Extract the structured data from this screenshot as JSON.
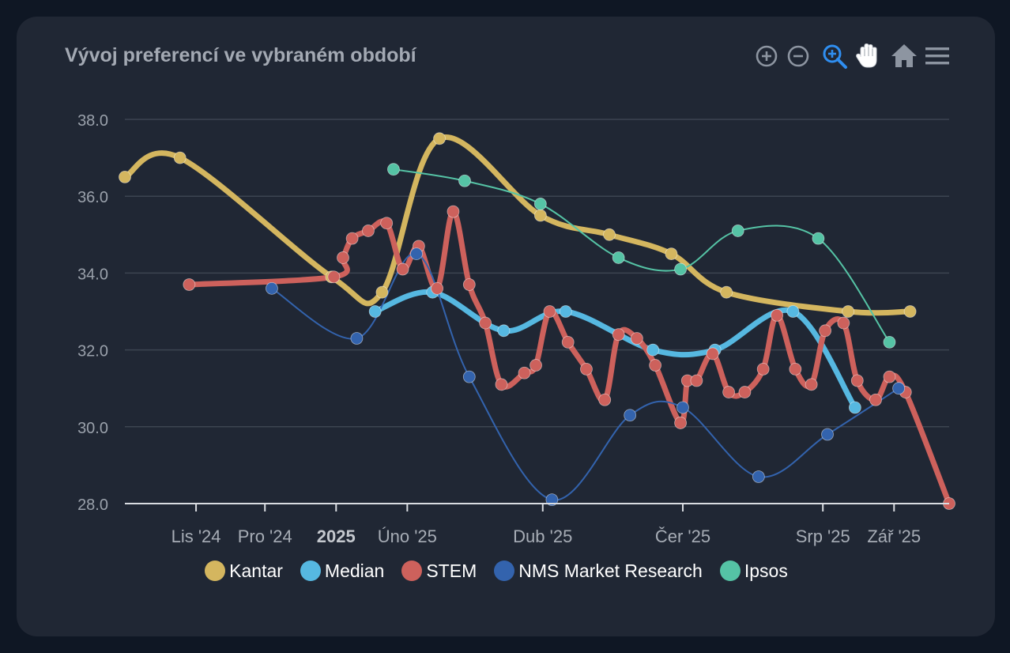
{
  "title": "Vývoj preferencí ve vybraném období",
  "toolbar": [
    {
      "name": "zoom-in-icon",
      "color": "#8d95a1"
    },
    {
      "name": "zoom-out-icon",
      "color": "#8d95a1"
    },
    {
      "name": "selection-zoom-icon",
      "color": "#2f8ef0"
    },
    {
      "name": "pan-hand-icon",
      "color": "#ffffff"
    },
    {
      "name": "reset-home-icon",
      "color": "#8d95a1"
    },
    {
      "name": "menu-icon",
      "color": "#8d95a1"
    }
  ],
  "chart_data": {
    "type": "line",
    "title": "Vývoj preferencí ve vybraném období",
    "x_type": "date",
    "x_range": [
      "2024-10-01",
      "2025-09-25"
    ],
    "ylim": [
      28,
      38
    ],
    "y_ticks": [
      "28.0",
      "30.0",
      "32.0",
      "34.0",
      "36.0",
      "38.0"
    ],
    "x_ticks": [
      {
        "date": "2024-11-01",
        "label": "Lis '24",
        "bold": false
      },
      {
        "date": "2024-12-01",
        "label": "Pro '24",
        "bold": false
      },
      {
        "date": "2025-01-01",
        "label": "2025",
        "bold": true
      },
      {
        "date": "2025-02-01",
        "label": "Úno '25",
        "bold": false
      },
      {
        "date": "2025-04-01",
        "label": "Dub '25",
        "bold": false
      },
      {
        "date": "2025-06-01",
        "label": "Čer '25",
        "bold": false
      },
      {
        "date": "2025-08-01",
        "label": "Srp '25",
        "bold": false
      },
      {
        "date": "2025-09-01",
        "label": "Zář '25",
        "bold": false
      }
    ],
    "grid": true,
    "legend_position": "bottom",
    "series": [
      {
        "name": "Kantar",
        "color": "#d4b65f",
        "weight": "thick",
        "points": [
          [
            "2024-10-01",
            36.5
          ],
          [
            "2024-10-25",
            37.0
          ],
          [
            "2024-12-30",
            33.9
          ],
          [
            "2025-01-21",
            33.5
          ],
          [
            "2025-02-15",
            37.5
          ],
          [
            "2025-03-31",
            35.5
          ],
          [
            "2025-04-30",
            35.0
          ],
          [
            "2025-05-27",
            34.5
          ],
          [
            "2025-06-20",
            33.5
          ],
          [
            "2025-08-12",
            33.0
          ],
          [
            "2025-09-08",
            33.0
          ]
        ]
      },
      {
        "name": "Median",
        "color": "#56b8e1",
        "weight": "thick",
        "points": [
          [
            "2025-01-18",
            33.0
          ],
          [
            "2025-02-12",
            33.5
          ],
          [
            "2025-03-15",
            32.5
          ],
          [
            "2025-04-11",
            33.0
          ],
          [
            "2025-05-19",
            32.0
          ],
          [
            "2025-06-15",
            32.0
          ],
          [
            "2025-07-19",
            33.0
          ],
          [
            "2025-08-15",
            30.5
          ]
        ]
      },
      {
        "name": "STEM",
        "color": "#cd615c",
        "weight": "thick",
        "points": [
          [
            "2024-10-29",
            33.7
          ],
          [
            "2024-12-31",
            33.9
          ],
          [
            "2025-01-04",
            34.4
          ],
          [
            "2025-01-08",
            34.9
          ],
          [
            "2025-01-15",
            35.1
          ],
          [
            "2025-01-23",
            35.3
          ],
          [
            "2025-01-30",
            34.1
          ],
          [
            "2025-02-06",
            34.7
          ],
          [
            "2025-02-14",
            33.6
          ],
          [
            "2025-02-21",
            35.6
          ],
          [
            "2025-02-28",
            33.7
          ],
          [
            "2025-03-07",
            32.7
          ],
          [
            "2025-03-14",
            31.1
          ],
          [
            "2025-03-24",
            31.4
          ],
          [
            "2025-03-29",
            31.6
          ],
          [
            "2025-04-04",
            33.0
          ],
          [
            "2025-04-12",
            32.2
          ],
          [
            "2025-04-20",
            31.5
          ],
          [
            "2025-04-28",
            30.7
          ],
          [
            "2025-05-04",
            32.4
          ],
          [
            "2025-05-12",
            32.3
          ],
          [
            "2025-05-20",
            31.6
          ],
          [
            "2025-05-31",
            30.1
          ],
          [
            "2025-06-03",
            31.2
          ],
          [
            "2025-06-07",
            31.2
          ],
          [
            "2025-06-14",
            31.9
          ],
          [
            "2025-06-21",
            30.9
          ],
          [
            "2025-06-28",
            30.9
          ],
          [
            "2025-07-06",
            31.5
          ],
          [
            "2025-07-12",
            32.9
          ],
          [
            "2025-07-20",
            31.5
          ],
          [
            "2025-07-27",
            31.1
          ],
          [
            "2025-08-02",
            32.5
          ],
          [
            "2025-08-10",
            32.7
          ],
          [
            "2025-08-16",
            31.2
          ],
          [
            "2025-08-24",
            30.7
          ],
          [
            "2025-08-30",
            31.3
          ],
          [
            "2025-09-06",
            30.9
          ],
          [
            "2025-09-25",
            28.0
          ]
        ]
      },
      {
        "name": "NMS Market Research",
        "color": "#3363ad",
        "weight": "thin",
        "points": [
          [
            "2024-12-04",
            33.6
          ],
          [
            "2025-01-10",
            32.3
          ],
          [
            "2025-02-05",
            34.5
          ],
          [
            "2025-02-28",
            31.3
          ],
          [
            "2025-04-05",
            28.1
          ],
          [
            "2025-05-09",
            30.3
          ],
          [
            "2025-06-01",
            30.5
          ],
          [
            "2025-07-04",
            28.7
          ],
          [
            "2025-08-03",
            29.8
          ],
          [
            "2025-09-03",
            31.0
          ]
        ]
      },
      {
        "name": "Ipsos",
        "color": "#55c3a5",
        "weight": "thin",
        "points": [
          [
            "2025-01-26",
            36.7
          ],
          [
            "2025-02-26",
            36.4
          ],
          [
            "2025-03-31",
            35.8
          ],
          [
            "2025-05-04",
            34.4
          ],
          [
            "2025-05-31",
            34.1
          ],
          [
            "2025-06-25",
            35.1
          ],
          [
            "2025-07-30",
            34.9
          ],
          [
            "2025-08-30",
            32.2
          ]
        ]
      }
    ]
  }
}
